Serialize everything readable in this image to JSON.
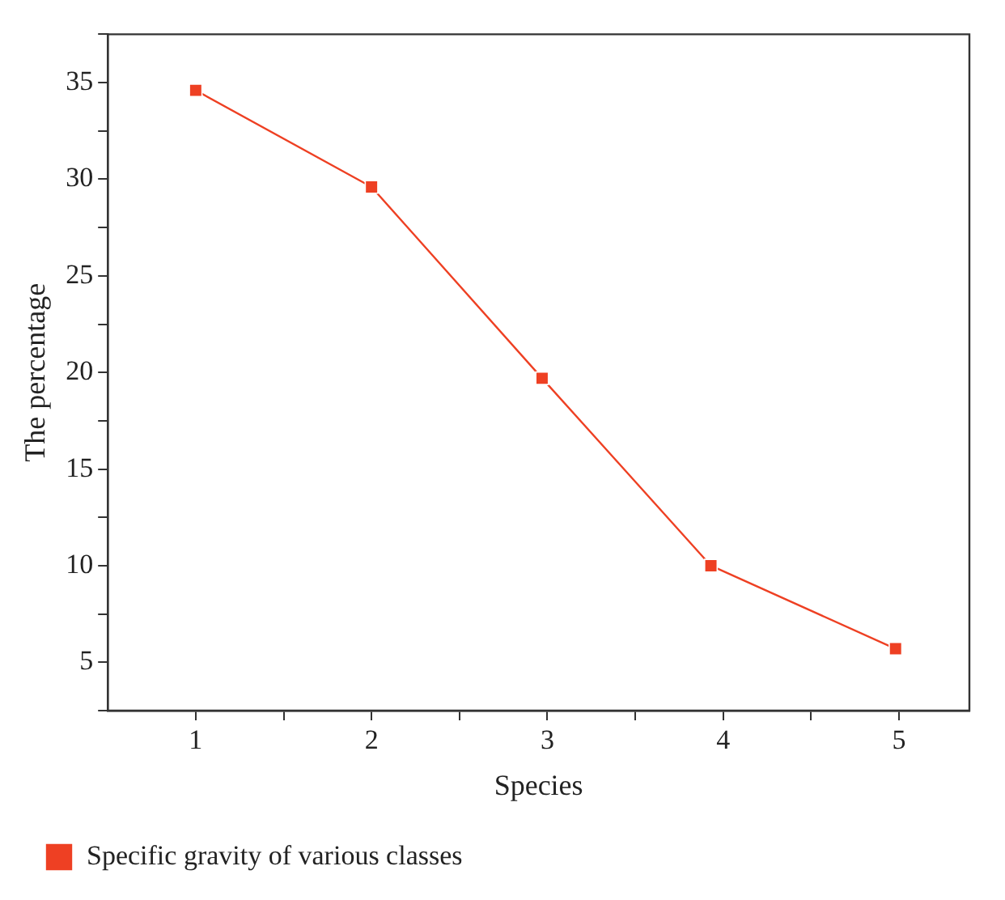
{
  "chart_data": {
    "type": "line",
    "xlabel": "Species",
    "ylabel": "The percentage",
    "x": [
      1,
      2,
      2.97,
      3.93,
      4.98
    ],
    "series": [
      {
        "name": "Specific gravity of various classes",
        "color": "#ee4023",
        "values": [
          34.6,
          29.6,
          19.7,
          10,
          5.7
        ]
      }
    ],
    "xlim": [
      0.5,
      5.4
    ],
    "xticks": [
      1,
      {
        "value": 1.5,
        "label": null
      },
      2,
      {
        "value": 2.5,
        "label": null
      },
      3,
      {
        "value": 3.5,
        "label": null
      },
      4,
      {
        "value": 4.5,
        "label": null
      },
      5
    ],
    "ylim": [
      2.5,
      37.5
    ],
    "yticks": [
      {
        "value": 2.5,
        "label": null
      },
      5,
      {
        "value": 7.5,
        "label": null
      },
      10,
      {
        "value": 12.5,
        "label": null
      },
      15,
      {
        "value": 17.5,
        "label": null
      },
      20,
      {
        "value": 22.5,
        "label": null
      },
      25,
      {
        "value": 27.5,
        "label": null
      },
      30,
      {
        "value": 32.5,
        "label": null
      },
      35,
      {
        "value": 37.5,
        "label": null
      }
    ],
    "grid": false,
    "legend": "bottom left",
    "marker": "square",
    "line_style": "solid"
  }
}
